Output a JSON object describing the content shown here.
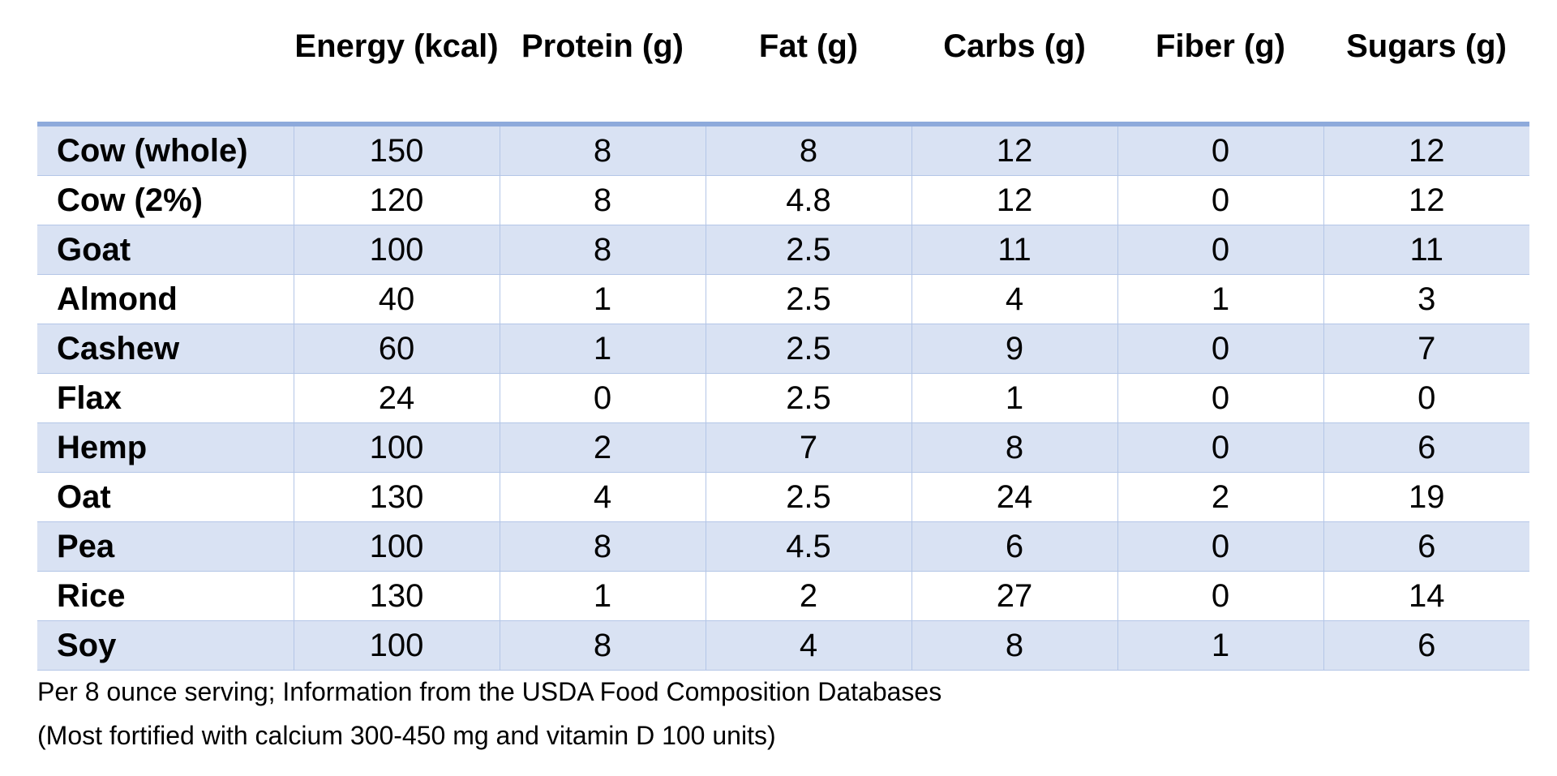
{
  "table": {
    "columns": [
      "",
      "Energy (kcal)",
      "Protein (g)",
      "Fat (g)",
      "Carbs (g)",
      "Fiber (g)",
      "Sugars (g)"
    ],
    "rows": [
      [
        "Cow (whole)",
        "150",
        "8",
        "8",
        "12",
        "0",
        "12"
      ],
      [
        "Cow (2%)",
        "120",
        "8",
        "4.8",
        "12",
        "0",
        "12"
      ],
      [
        "Goat",
        "100",
        "8",
        "2.5",
        "11",
        "0",
        "11"
      ],
      [
        "Almond",
        "40",
        "1",
        "2.5",
        "4",
        "1",
        "3"
      ],
      [
        "Cashew",
        "60",
        "1",
        "2.5",
        "9",
        "0",
        "7"
      ],
      [
        "Flax",
        "24",
        "0",
        "2.5",
        "1",
        "0",
        "0"
      ],
      [
        "Hemp",
        "100",
        "2",
        "7",
        "8",
        "0",
        "6"
      ],
      [
        "Oat",
        "130",
        "4",
        "2.5",
        "24",
        "2",
        "19"
      ],
      [
        "Pea",
        "100",
        "8",
        "4.5",
        "6",
        "0",
        "6"
      ],
      [
        "Rice",
        "130",
        "1",
        "2",
        "27",
        "0",
        "14"
      ],
      [
        "Soy",
        "100",
        "8",
        "4",
        "8",
        "1",
        "6"
      ]
    ]
  },
  "footnotes": [
    "Per 8 ounce serving; Information from the USDA Food Composition Databases",
    "(Most fortified with calcium 300-450 mg and vitamin D 100 units)"
  ],
  "colors": {
    "band": "#d9e2f3",
    "header_rule": "#8eaadb",
    "grid": "#b4c6e7"
  }
}
